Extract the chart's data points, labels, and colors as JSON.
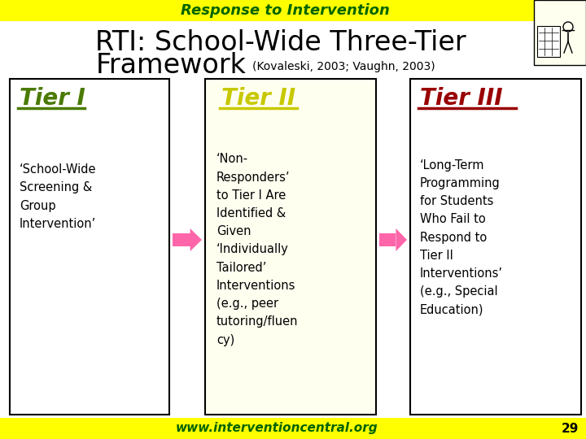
{
  "title_bar_text": "Response to Intervention",
  "title_bar_bg": "#FFFF00",
  "title_bar_color": "#006400",
  "bg_color": "#FFFFFF",
  "footer_text": "www.interventioncentral.org",
  "footer_page": "29",
  "footer_bg": "#FFFF00",
  "footer_color": "#006400",
  "tier1_label": "Tier I",
  "tier1_label_color": "#4A7A00",
  "tier1_box_bg": "#FFFFFF",
  "tier2_label": "Tier II",
  "tier2_label_color": "#C8C800",
  "tier2_box_bg": "#FFFFF0",
  "tier3_label": "Tier III",
  "tier3_label_color": "#990000",
  "tier3_box_bg": "#FFFFFF",
  "box_border_color": "#000000",
  "arrow_color": "#FF66AA",
  "tier1_text": "‘School-Wide\nScreening &\nGroup\nIntervention’",
  "tier2_text": "‘Non-\nResponders’\nto Tier I Are\nIdentified &\nGiven\n‘Individually\nTailored’\nInterventions\n(e.g., peer\ntutoring/fluen\ncy)",
  "tier3_text": "‘Long-Term\nProgramming\nfor Students\nWho Fail to\nRespond to\nTier II\nInterventions’\n(e.g., Special\nEducation)",
  "citation": "(Kovaleski, 2003; Vaughn, 2003)",
  "main_title_line1": "RTI: School-Wide Three-Tier",
  "main_title_line2": "Framework"
}
